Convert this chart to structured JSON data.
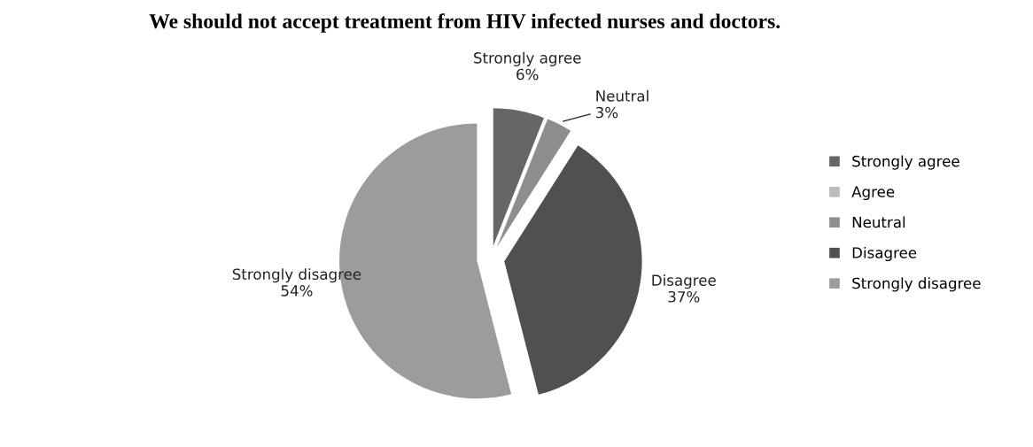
{
  "chart_data": {
    "type": "pie",
    "title": "We should not accept treatment from HIV infected nurses and doctors.",
    "categories": [
      "Strongly agree",
      "Agree",
      "Neutral",
      "Disagree",
      "Strongly disagree"
    ],
    "values": [
      6,
      0,
      3,
      37,
      54
    ],
    "colors": [
      "#666666",
      "#bbbbbb",
      "#8e8e8e",
      "#505050",
      "#9c9c9c"
    ],
    "value_labels": [
      "6%",
      null,
      "3%",
      "37%",
      "54%"
    ],
    "legend": "right"
  }
}
